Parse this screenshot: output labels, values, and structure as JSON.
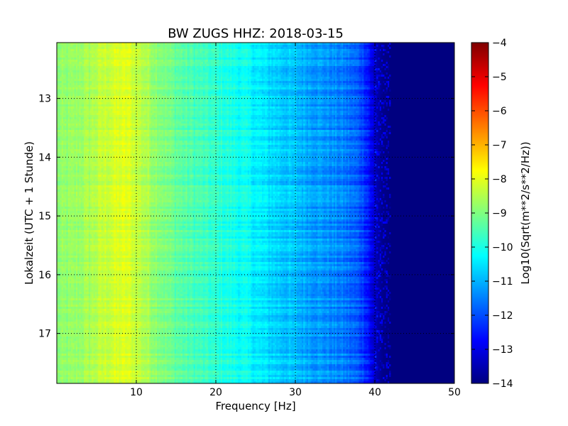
{
  "chart_data": {
    "type": "heatmap",
    "title": "BW ZUGS HHZ: 2018-03-15",
    "xlabel": "Frequency [Hz]",
    "ylabel": "Lokalzeit (UTC + 1 Stunde)",
    "colorbar_label": "Log10(Sqrt(m**2/s**2/Hz))",
    "colormap": "jet",
    "xlim": [
      0,
      50
    ],
    "ylim": [
      17.85,
      12.05
    ],
    "x_ticks": [
      10,
      20,
      30,
      40,
      50
    ],
    "y_ticks": [
      13,
      14,
      15,
      16,
      17
    ],
    "color_range": [
      -14,
      -4
    ],
    "color_ticks": [
      -4,
      -5,
      -6,
      -7,
      -8,
      -9,
      -10,
      -11,
      -12,
      -13,
      -14
    ],
    "grid": true,
    "spectrum_profile": {
      "frequency_hz": [
        0,
        2,
        4,
        6,
        8,
        9,
        10,
        12,
        14,
        16,
        18,
        20,
        22,
        24,
        26,
        28,
        30,
        32,
        34,
        36,
        38,
        39,
        40,
        41,
        42,
        50
      ],
      "log10_value": [
        -8.9,
        -8.8,
        -8.6,
        -8.3,
        -8.1,
        -8.1,
        -8.3,
        -8.7,
        -9.1,
        -9.4,
        -9.6,
        -9.8,
        -10.0,
        -10.2,
        -10.5,
        -10.7,
        -10.9,
        -11.1,
        -11.3,
        -11.5,
        -11.9,
        -12.3,
        -13.4,
        -13.9,
        -14.0,
        -14.0
      ]
    }
  }
}
